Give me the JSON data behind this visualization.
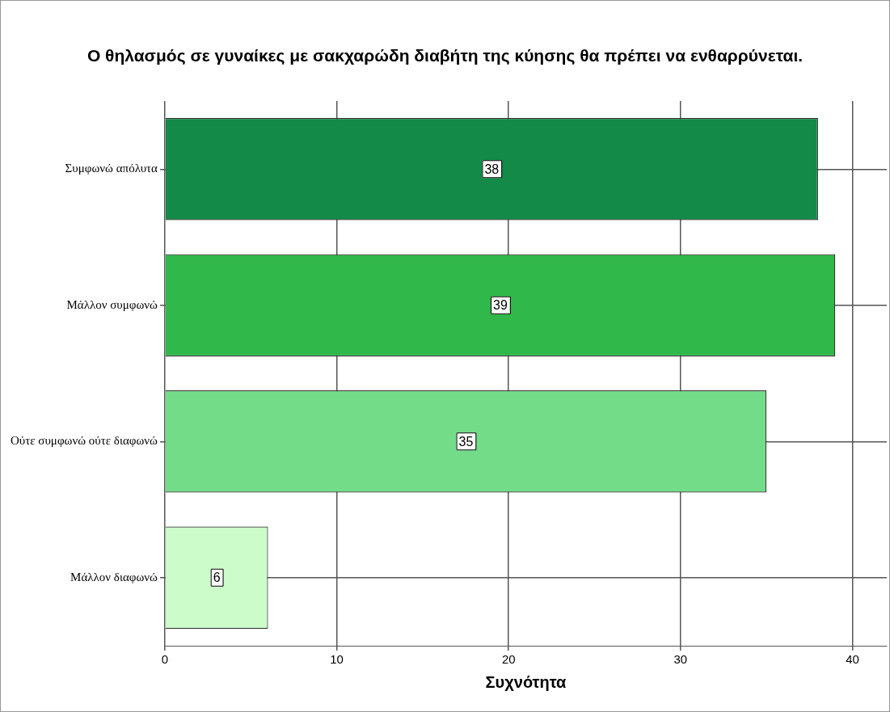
{
  "chart_data": {
    "type": "bar",
    "orientation": "horizontal",
    "title": "Ο θηλασμός σε γυναίκες με σακχαρώδη διαβήτη της κύησης θα πρέπει να ενθαρρύνεται.",
    "xlabel": "Συχνότητα",
    "categories": [
      "Συμφωνώ απόλυτα",
      "Μάλλον συμφωνώ",
      "Ούτε συμφωνώ ούτε διαφωνώ",
      "Μάλλον διαφωνώ"
    ],
    "values": [
      38,
      39,
      35,
      6
    ],
    "colors": [
      "#138a47",
      "#30b84a",
      "#72dc88",
      "#cdfccb"
    ],
    "xlim": [
      0,
      42
    ],
    "xticks": [
      0,
      10,
      20,
      30,
      40
    ],
    "grid": true,
    "data_labels": true,
    "legend": false
  }
}
